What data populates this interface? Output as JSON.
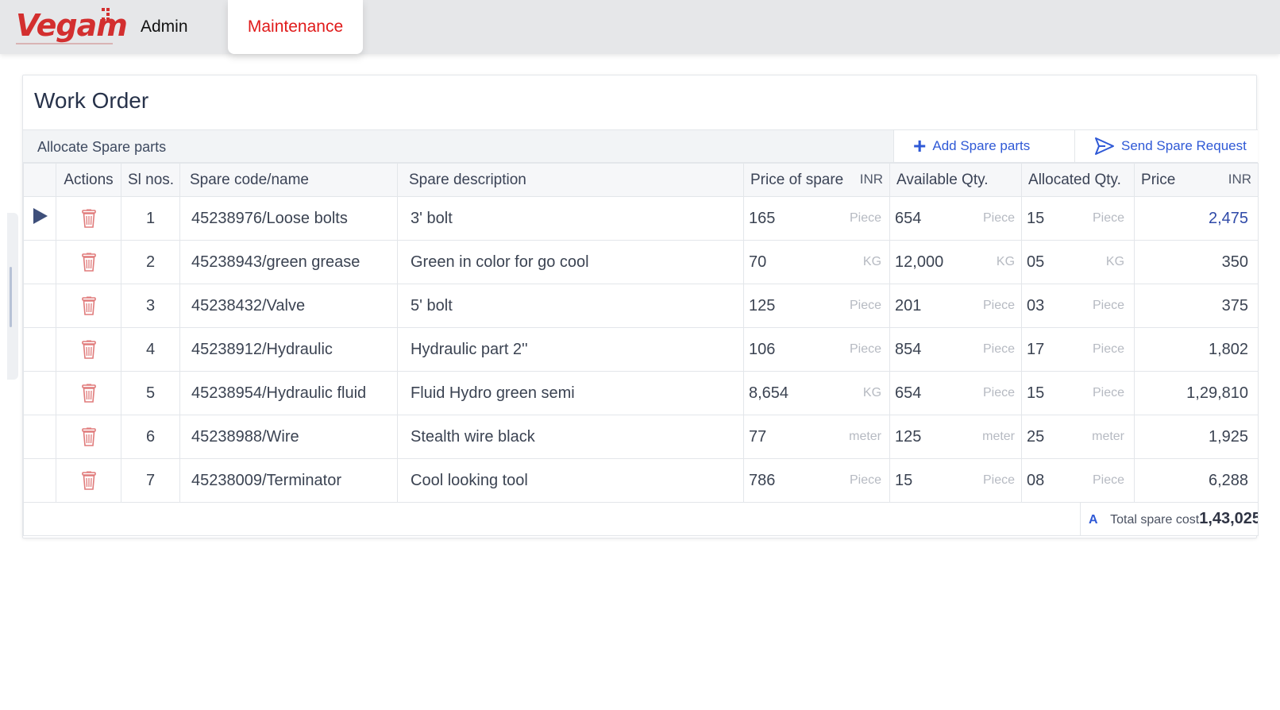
{
  "nav": {
    "logo": "Vegam",
    "admin_label": "Admin",
    "maintenance_label": "Maintenance"
  },
  "page": {
    "title": "Work Order",
    "section_title": "Allocate Spare parts",
    "add_button": "Add Spare parts",
    "send_button": "Send Spare Request"
  },
  "table": {
    "headers": {
      "actions": "Actions",
      "sl": "Sl nos.",
      "code": "Spare code/name",
      "description": "Spare description",
      "price_of_spare": "Price of spare",
      "price_currency": "INR",
      "available": "Available Qty.",
      "allocated": "Allocated Qty.",
      "price": "Price",
      "total_currency": "INR"
    },
    "rows": [
      {
        "sl": "1",
        "code": "45238976/Loose bolts",
        "description": "3' bolt",
        "price": "165",
        "price_unit": "Piece",
        "available": "654",
        "available_unit": "Piece",
        "allocated": "15",
        "allocated_unit": "Piece",
        "total": "2,475"
      },
      {
        "sl": "2",
        "code": "45238943/green grease",
        "description": "Green in color for go cool",
        "price": "70",
        "price_unit": "KG",
        "available": "12,000",
        "available_unit": "KG",
        "allocated": "05",
        "allocated_unit": "KG",
        "total": "350"
      },
      {
        "sl": "3",
        "code": "45238432/Valve",
        "description": "5' bolt",
        "price": "125",
        "price_unit": "Piece",
        "available": "201",
        "available_unit": "Piece",
        "allocated": "03",
        "allocated_unit": "Piece",
        "total": "375"
      },
      {
        "sl": "4",
        "code": "45238912/Hydraulic",
        "description": "Hydraulic part 2''",
        "price": "106",
        "price_unit": "Piece",
        "available": "854",
        "available_unit": "Piece",
        "allocated": "17",
        "allocated_unit": "Piece",
        "total": "1,802"
      },
      {
        "sl": "5",
        "code": "45238954/Hydraulic fluid",
        "description": "Fluid Hydro green semi",
        "price": "8,654",
        "price_unit": "KG",
        "available": "654",
        "available_unit": "Piece",
        "allocated": "15",
        "allocated_unit": "Piece",
        "total": "1,29,810"
      },
      {
        "sl": "6",
        "code": "45238988/Wire",
        "description": "Stealth wire black",
        "price": "77",
        "price_unit": "meter",
        "available": "125",
        "available_unit": "meter",
        "allocated": "25",
        "allocated_unit": "meter",
        "total": "1,925"
      },
      {
        "sl": "7",
        "code": "45238009/Terminator",
        "description": "Cool looking tool",
        "price": "786",
        "price_unit": "Piece",
        "available": "15",
        "available_unit": "Piece",
        "allocated": "08",
        "allocated_unit": "Piece",
        "total": "6,288"
      }
    ],
    "footer": {
      "letter": "A",
      "label": "Total spare cost",
      "value": "1,43,025"
    }
  },
  "icons": {
    "add": "plus-icon",
    "send": "send-icon",
    "delete": "trash-icon",
    "row_pointer": "play-arrow-icon"
  },
  "colors": {
    "brand_red": "#e01b1b",
    "accent_blue": "#2f59d6",
    "trash": "#e07b7b"
  }
}
